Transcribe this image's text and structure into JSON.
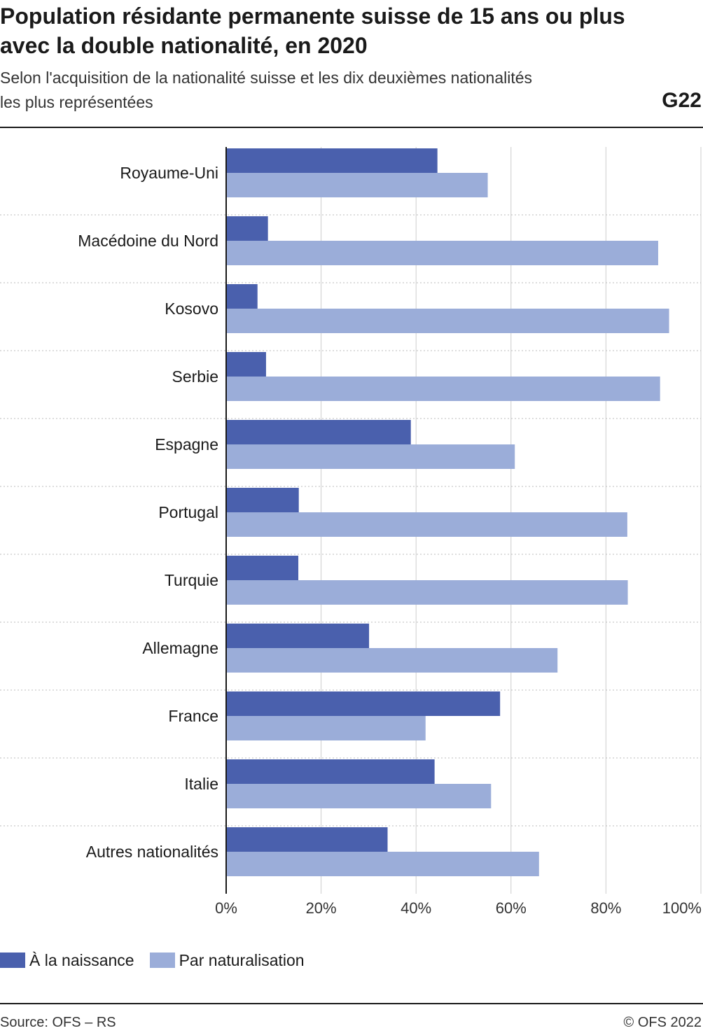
{
  "header": {
    "title": "Population résidante permanente suisse de 15 ans ou plus avec la double nationalité, en 2020",
    "subtitle": "Selon l'acquisition de la nationalité suisse et les dix deuxièmes nationalités les plus représentées",
    "graphic_number": "G22"
  },
  "footer": {
    "source": "Source: OFS – RS",
    "copyright": "© OFS 2022"
  },
  "colors": {
    "naissance": "#4a60ad",
    "naturalisation": "#9badd9",
    "grid": "#cccccc",
    "separator": "#bbbbbb",
    "axis": "#1a1a1a"
  },
  "chart_data": {
    "type": "bar",
    "orientation": "horizontal",
    "categories": [
      "Royaume-Uni",
      "Macédoine du Nord",
      "Kosovo",
      "Serbie",
      "Espagne",
      "Portugal",
      "Turquie",
      "Allemagne",
      "France",
      "Italie",
      "Autres nationalités"
    ],
    "series": [
      {
        "name": "À la naissance",
        "values": [
          44.5,
          8.8,
          6.6,
          8.4,
          38.9,
          15.3,
          15.2,
          30.1,
          57.7,
          43.9,
          34.0
        ]
      },
      {
        "name": "Par naturalisation",
        "values": [
          55.1,
          91.0,
          93.3,
          91.4,
          60.8,
          84.5,
          84.6,
          69.8,
          42.0,
          55.8,
          65.9
        ]
      }
    ],
    "x_ticks": [
      "0%",
      "20%",
      "40%",
      "60%",
      "80%",
      "100%"
    ],
    "xlim": [
      0,
      100
    ],
    "grid": true,
    "legend_position": "bottom-left"
  }
}
